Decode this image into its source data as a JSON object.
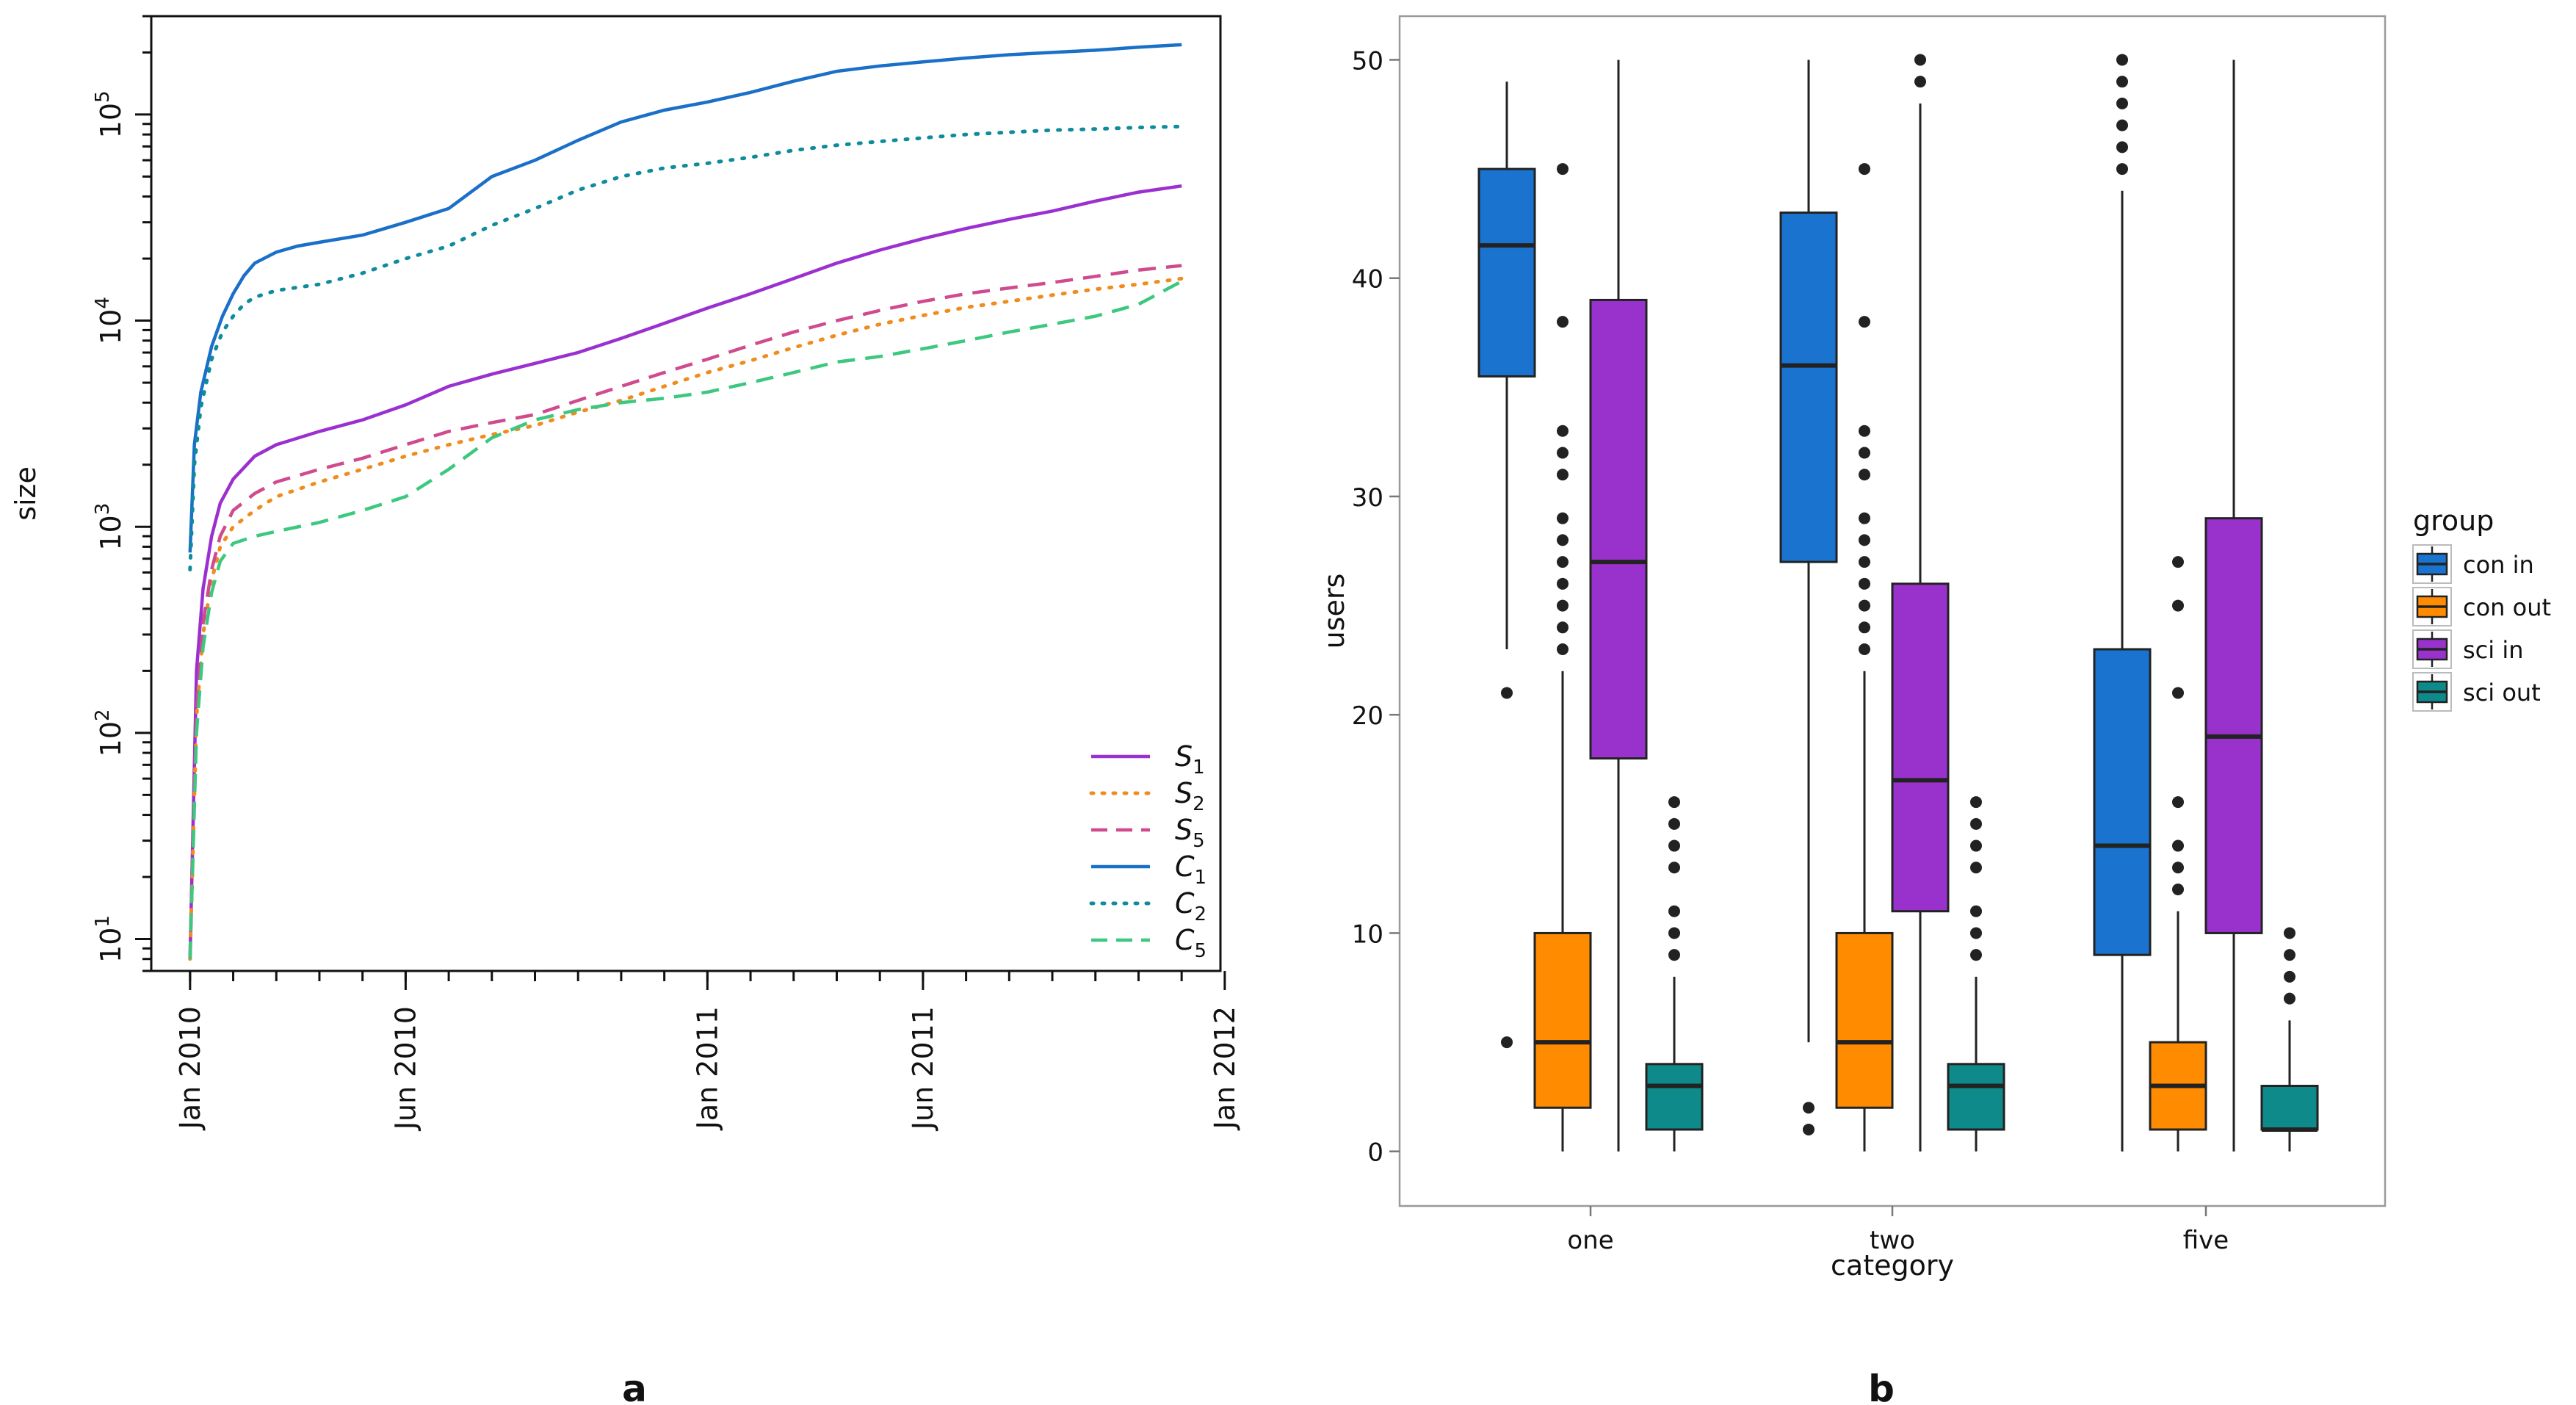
{
  "chart_data": [
    {
      "panel_label": "a",
      "type": "line",
      "title": "",
      "xlabel": "",
      "ylabel": "size",
      "yscale": "log10",
      "ylim": [
        7,
        300000
      ],
      "x_ticks": [
        "Jan 2010",
        "Jun 2010",
        "Jan 2011",
        "Jun 2011",
        "Jan 2012"
      ],
      "x_range_months": [
        -0.9,
        23.9
      ],
      "y_ticks": [
        {
          "base": "10",
          "exp": "1",
          "value": 10
        },
        {
          "base": "10",
          "exp": "2",
          "value": 100
        },
        {
          "base": "10",
          "exp": "3",
          "value": 1000
        },
        {
          "base": "10",
          "exp": "4",
          "value": 10000
        },
        {
          "base": "10",
          "exp": "5",
          "value": 100000
        }
      ],
      "legend": "bottom-right",
      "series": [
        {
          "name": "S",
          "sub": "1",
          "color": "#9b30d0",
          "dash": "solid",
          "x": [
            0,
            0.15,
            0.3,
            0.5,
            0.7,
            1,
            1.5,
            2,
            3,
            4,
            5,
            6,
            7,
            8,
            9,
            10,
            11,
            12,
            13,
            14,
            15,
            16,
            17,
            18,
            19,
            20,
            21,
            22,
            23
          ],
          "values": [
            8,
            200,
            500,
            900,
            1300,
            1700,
            2200,
            2500,
            2900,
            3300,
            3900,
            4800,
            5500,
            6200,
            7000,
            8200,
            9700,
            11500,
            13500,
            16000,
            19000,
            22000,
            25000,
            28000,
            31000,
            34000,
            38000,
            42000,
            45000
          ]
        },
        {
          "name": "S",
          "sub": "2",
          "color": "#f08c1e",
          "dash": "dotted",
          "x": [
            0,
            0.15,
            0.3,
            0.5,
            0.7,
            1,
            1.5,
            2,
            3,
            4,
            5,
            6,
            7,
            8,
            9,
            10,
            11,
            12,
            13,
            14,
            15,
            16,
            17,
            18,
            19,
            20,
            21,
            22,
            23
          ],
          "values": [
            8,
            120,
            300,
            550,
            800,
            1000,
            1200,
            1400,
            1650,
            1900,
            2200,
            2500,
            2800,
            3100,
            3600,
            4100,
            4800,
            5600,
            6400,
            7400,
            8500,
            9600,
            10600,
            11600,
            12400,
            13300,
            14200,
            15000,
            16000
          ]
        },
        {
          "name": "S",
          "sub": "5",
          "color": "#d04a8e",
          "dash": "dashed",
          "x": [
            0,
            0.15,
            0.3,
            0.5,
            0.7,
            1,
            1.5,
            2,
            3,
            4,
            5,
            6,
            7,
            8,
            9,
            10,
            11,
            12,
            13,
            14,
            15,
            16,
            17,
            18,
            19,
            20,
            21,
            22,
            23
          ],
          "values": [
            8,
            130,
            340,
            620,
            900,
            1200,
            1450,
            1650,
            1900,
            2150,
            2500,
            2900,
            3200,
            3500,
            4100,
            4800,
            5600,
            6500,
            7600,
            8800,
            10000,
            11200,
            12400,
            13500,
            14400,
            15300,
            16400,
            17600,
            18500
          ]
        },
        {
          "name": "C",
          "sub": "1",
          "color": "#1a70c8",
          "dash": "solid",
          "x": [
            0,
            0.1,
            0.25,
            0.5,
            0.75,
            1,
            1.25,
            1.5,
            2,
            2.5,
            3,
            4,
            5,
            6,
            7,
            8,
            9,
            10,
            11,
            12,
            13,
            14,
            15,
            16,
            17,
            18,
            19,
            20,
            21,
            22,
            23
          ],
          "values": [
            750,
            2500,
            4500,
            7500,
            10500,
            13500,
            16500,
            19000,
            21500,
            23000,
            24000,
            26000,
            30000,
            35000,
            50000,
            60000,
            75000,
            92000,
            105000,
            115000,
            128000,
            145000,
            162000,
            172000,
            180000,
            188000,
            195000,
            200000,
            205000,
            212000,
            218000
          ]
        },
        {
          "name": "C",
          "sub": "2",
          "color": "#0e8c9c",
          "dash": "dotted",
          "x": [
            0,
            0.1,
            0.25,
            0.5,
            0.75,
            1,
            1.25,
            1.5,
            2,
            2.5,
            3,
            4,
            5,
            6,
            7,
            8,
            9,
            10,
            11,
            12,
            13,
            14,
            15,
            16,
            17,
            18,
            19,
            20,
            21,
            22,
            23
          ],
          "values": [
            620,
            2000,
            3800,
            6500,
            8800,
            10500,
            12000,
            13000,
            14000,
            14500,
            15000,
            17000,
            20000,
            23000,
            29000,
            35000,
            43000,
            50000,
            55000,
            58000,
            62000,
            67000,
            71000,
            74000,
            77000,
            80000,
            82000,
            84000,
            85000,
            86500,
            87500
          ]
        },
        {
          "name": "C",
          "sub": "5",
          "color": "#3dc880",
          "dash": "dashed",
          "x": [
            0,
            0.15,
            0.3,
            0.5,
            0.7,
            1,
            1.5,
            2,
            3,
            4,
            5,
            6,
            7,
            8,
            9,
            10,
            11,
            12,
            13,
            14,
            15,
            16,
            17,
            18,
            19,
            20,
            21,
            22,
            23
          ],
          "values": [
            8,
            100,
            260,
            480,
            680,
            830,
            900,
            950,
            1050,
            1200,
            1400,
            1900,
            2700,
            3300,
            3700,
            4000,
            4200,
            4500,
            5000,
            5600,
            6300,
            6700,
            7300,
            8000,
            8800,
            9600,
            10500,
            12000,
            15500
          ]
        }
      ]
    },
    {
      "panel_label": "b",
      "type": "box",
      "title": "",
      "xlabel": "category",
      "ylabel": "users",
      "ylim": [
        -2.5,
        52
      ],
      "y_ticks": [
        0,
        10,
        20,
        30,
        40,
        50
      ],
      "categories": [
        "one",
        "two",
        "five"
      ],
      "legend": "right",
      "legend_title": "group",
      "groups": [
        {
          "name": "con in",
          "color": "#1a73cf"
        },
        {
          "name": "con out",
          "color": "#ff8c00"
        },
        {
          "name": "sci in",
          "color": "#9932cc"
        },
        {
          "name": "sci out",
          "color": "#0e8a8a"
        }
      ],
      "boxes": [
        {
          "category": "one",
          "group": "con in",
          "min": 23,
          "q1": 35.5,
          "median": 41.5,
          "q3": 45,
          "max": 49,
          "outliers": [
            21,
            5
          ]
        },
        {
          "category": "one",
          "group": "con out",
          "min": 0,
          "q1": 2,
          "median": 5,
          "q3": 10,
          "max": 22,
          "outliers": [
            23,
            24,
            25,
            26,
            27,
            28,
            29,
            31,
            32,
            33,
            38,
            45
          ]
        },
        {
          "category": "one",
          "group": "sci in",
          "min": 0,
          "q1": 18,
          "median": 27,
          "q3": 39,
          "max": 50,
          "outliers": []
        },
        {
          "category": "one",
          "group": "sci out",
          "min": 0,
          "q1": 1,
          "median": 3,
          "q3": 4,
          "max": 8,
          "outliers": [
            9,
            10,
            11,
            13,
            14,
            15,
            16
          ]
        },
        {
          "category": "two",
          "group": "con in",
          "min": 5,
          "q1": 27,
          "median": 36,
          "q3": 43,
          "max": 50,
          "outliers": [
            1,
            2
          ]
        },
        {
          "category": "two",
          "group": "con out",
          "min": 0,
          "q1": 2,
          "median": 5,
          "q3": 10,
          "max": 22,
          "outliers": [
            23,
            24,
            25,
            26,
            27,
            28,
            29,
            31,
            32,
            33,
            38,
            45
          ]
        },
        {
          "category": "two",
          "group": "sci in",
          "min": 0,
          "q1": 11,
          "median": 17,
          "q3": 26,
          "max": 48,
          "outliers": [
            49,
            50
          ]
        },
        {
          "category": "two",
          "group": "sci out",
          "min": 0,
          "q1": 1,
          "median": 3,
          "q3": 4,
          "max": 8,
          "outliers": [
            9,
            10,
            11,
            13,
            14,
            15,
            16
          ]
        },
        {
          "category": "five",
          "group": "con in",
          "min": 0,
          "q1": 9,
          "median": 14,
          "q3": 23,
          "max": 44,
          "outliers": [
            45,
            46,
            47,
            48,
            49,
            50
          ]
        },
        {
          "category": "five",
          "group": "con out",
          "min": 0,
          "q1": 1,
          "median": 3,
          "q3": 5,
          "max": 11,
          "outliers": [
            12,
            13,
            14,
            16,
            21,
            25,
            27
          ]
        },
        {
          "category": "five",
          "group": "sci in",
          "min": 0,
          "q1": 10,
          "median": 19,
          "q3": 29,
          "max": 50,
          "outliers": []
        },
        {
          "category": "five",
          "group": "sci out",
          "min": 0,
          "q1": 1,
          "median": 1,
          "q3": 3,
          "max": 6,
          "outliers": [
            7,
            8,
            9,
            10
          ]
        }
      ]
    }
  ]
}
